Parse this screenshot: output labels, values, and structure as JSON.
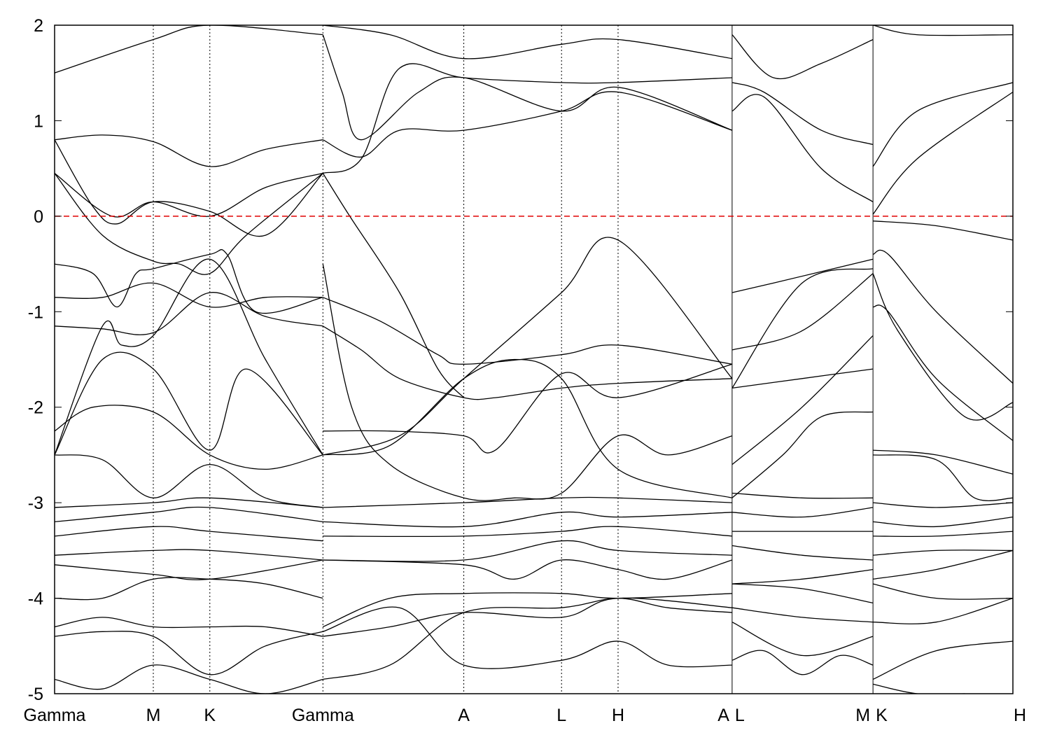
{
  "chart_data": {
    "type": "line",
    "title": "",
    "xlabel": "",
    "ylabel": "",
    "ylim": [
      -5,
      2
    ],
    "yticks": [
      2,
      1,
      0,
      -1,
      -2,
      -3,
      -4,
      -5
    ],
    "ytick_labels": [
      "2",
      "1",
      "0",
      "-1",
      "-2",
      "-3",
      "-4",
      "-5"
    ],
    "fermi_level": 0,
    "fermi_color": "#e00000",
    "line_color": "#000000",
    "xlim": [
      0,
      100
    ],
    "kpoints": [
      {
        "label": "Gamma",
        "x": 0
      },
      {
        "label": "M",
        "x": 10.3
      },
      {
        "label": "K",
        "x": 16.2
      },
      {
        "label": "Gamma",
        "x": 28.0
      },
      {
        "label": "A",
        "x": 42.7
      },
      {
        "label": "L",
        "x": 52.9
      },
      {
        "label": "H",
        "x": 58.8
      },
      {
        "label": "A",
        "x": 70.7
      },
      {
        "label": "L",
        "x": 70.7
      },
      {
        "label": "M",
        "x": 85.4
      },
      {
        "label": "K",
        "x": 85.4
      },
      {
        "label": "H",
        "x": 100
      }
    ],
    "discontinuities": [
      70.7,
      85.4
    ],
    "series": [
      {
        "x": [
          0,
          5,
          10.3,
          16.2,
          22,
          28.0
        ],
        "y": [
          0.8,
          0.85,
          0.78,
          0.52,
          0.7,
          0.8
        ]
      },
      {
        "x": [
          0,
          5,
          10.3,
          13,
          16.2,
          20,
          28.0
        ],
        "y": [
          0.45,
          -0.2,
          -0.47,
          -0.5,
          -0.6,
          -0.2,
          0.45
        ]
      },
      {
        "x": [
          0,
          6,
          10.3,
          16.2,
          22,
          28.0
        ],
        "y": [
          0.45,
          0.0,
          0.15,
          0.0,
          0.3,
          0.45
        ]
      },
      {
        "x": [
          0,
          4,
          6.5,
          10.3,
          16.2,
          22,
          28.0
        ],
        "y": [
          0.8,
          0.1,
          -0.08,
          0.15,
          0.05,
          -0.2,
          0.45
        ]
      },
      {
        "x": [
          0,
          4,
          6.5,
          8.5,
          10.3,
          16.2,
          18,
          21,
          28.0
        ],
        "y": [
          -0.5,
          -0.6,
          -0.95,
          -0.6,
          -0.55,
          -0.4,
          -0.4,
          -1.0,
          -0.85
        ]
      },
      {
        "x": [
          0,
          5,
          10.3,
          16.2,
          22,
          28.0
        ],
        "y": [
          -0.85,
          -0.85,
          -0.7,
          -0.95,
          -0.85,
          -0.85
        ]
      },
      {
        "x": [
          0,
          5,
          10.3,
          16.2,
          22,
          28.0
        ],
        "y": [
          -1.15,
          -1.18,
          -1.22,
          -0.8,
          -1.05,
          -1.15
        ]
      },
      {
        "x": [
          0,
          5,
          7,
          10.3,
          16.2,
          22,
          28.0
        ],
        "y": [
          -2.5,
          -1.15,
          -1.35,
          -1.25,
          -0.45,
          -1.5,
          -2.5
        ]
      },
      {
        "x": [
          0,
          5,
          10.3,
          16.2,
          20,
          28.0
        ],
        "y": [
          -2.5,
          -1.5,
          -1.6,
          -2.45,
          -1.6,
          -2.5
        ]
      },
      {
        "x": [
          0,
          4,
          10.3,
          16.2,
          22,
          28.0
        ],
        "y": [
          -2.25,
          -2.0,
          -2.05,
          -2.5,
          -2.65,
          -2.5
        ]
      },
      {
        "x": [
          0,
          5,
          10.3,
          16.2,
          22,
          28.0
        ],
        "y": [
          -2.5,
          -2.55,
          -2.95,
          -2.6,
          -2.95,
          -3.05
        ]
      },
      {
        "x": [
          0,
          10.3,
          16.2,
          28.0
        ],
        "y": [
          -3.05,
          -3.0,
          -2.95,
          -3.05
        ]
      },
      {
        "x": [
          0,
          10.3,
          16.2,
          28.0
        ],
        "y": [
          -3.2,
          -3.1,
          -3.05,
          -3.2
        ]
      },
      {
        "x": [
          0,
          10.3,
          16.2,
          28.0
        ],
        "y": [
          -3.35,
          -3.25,
          -3.3,
          -3.4
        ]
      },
      {
        "x": [
          0,
          10.3,
          16.2,
          28.0
        ],
        "y": [
          -3.55,
          -3.5,
          -3.5,
          -3.6
        ]
      },
      {
        "x": [
          0,
          10.3,
          16.2,
          28.0
        ],
        "y": [
          -3.65,
          -3.75,
          -3.8,
          -3.6
        ]
      },
      {
        "x": [
          0,
          5,
          10.3,
          16.2,
          22,
          28.0
        ],
        "y": [
          -4.0,
          -4.0,
          -3.8,
          -3.8,
          -3.85,
          -4.0
        ]
      },
      {
        "x": [
          0,
          5,
          10.3,
          16.2,
          22,
          28.0
        ],
        "y": [
          -4.3,
          -4.2,
          -4.3,
          -4.3,
          -4.3,
          -4.4
        ]
      },
      {
        "x": [
          0,
          5,
          10.3,
          16.2,
          22,
          28.0
        ],
        "y": [
          -4.4,
          -4.35,
          -4.4,
          -4.8,
          -4.5,
          -4.35
        ]
      },
      {
        "x": [
          0,
          5,
          10.3,
          16.2,
          22,
          28.0
        ],
        "y": [
          -4.85,
          -4.95,
          -4.7,
          -4.85,
          -5.0,
          -4.85
        ]
      },
      {
        "x": [
          0,
          10.3,
          16.2,
          28.0
        ],
        "y": [
          1.5,
          1.85,
          2.0,
          1.9
        ]
      },
      {
        "x": [
          28.0,
          32,
          36,
          42.7,
          52.9,
          58.8,
          70.7
        ],
        "y": [
          0.8,
          0.62,
          0.9,
          0.9,
          1.1,
          1.3,
          0.9
        ]
      },
      {
        "x": [
          28.0,
          32,
          36,
          42.7,
          52.9,
          58.8,
          70.7
        ],
        "y": [
          0.45,
          0.6,
          1.55,
          1.45,
          1.4,
          1.4,
          1.45
        ]
      },
      {
        "x": [
          28.0,
          30,
          32,
          38,
          42.7,
          52.9,
          58.8,
          70.7
        ],
        "y": [
          1.9,
          1.3,
          0.8,
          1.3,
          1.45,
          1.1,
          1.35,
          0.9
        ]
      },
      {
        "x": [
          28.0,
          35,
          42.7,
          52.9,
          58.8,
          70.7
        ],
        "y": [
          2.0,
          1.9,
          1.65,
          1.8,
          1.85,
          1.65
        ]
      },
      {
        "x": [
          28.0,
          30.8,
          36,
          40,
          42.7
        ],
        "y": [
          0.45,
          0.0,
          -0.8,
          -1.6,
          -1.9
        ]
      },
      {
        "x": [
          28.0,
          34,
          40,
          42.7,
          52.9,
          58.8,
          70.7
        ],
        "y": [
          -0.85,
          -1.1,
          -1.45,
          -1.55,
          -1.45,
          -1.35,
          -1.55
        ]
      },
      {
        "x": [
          28.0,
          32,
          36,
          42.7,
          46,
          52.9,
          58.8,
          70.7
        ],
        "y": [
          -1.15,
          -1.4,
          -1.7,
          -1.9,
          -1.9,
          -1.8,
          -1.75,
          -1.7
        ]
      },
      {
        "x": [
          28.0,
          31,
          35,
          42.7,
          48,
          52.9,
          58.8,
          64,
          70.7
        ],
        "y": [
          -0.5,
          -2.0,
          -2.6,
          -2.95,
          -2.95,
          -2.9,
          -2.3,
          -2.5,
          -2.3
        ]
      },
      {
        "x": [
          28.0,
          36,
          42.7,
          52.9,
          58.8,
          70.7
        ],
        "y": [
          -2.5,
          -2.3,
          -1.7,
          -0.8,
          -0.25,
          -1.7
        ]
      },
      {
        "x": [
          28.0,
          35,
          42.7,
          46,
          52.9,
          58.8,
          70.7
        ],
        "y": [
          -2.25,
          -2.25,
          -2.3,
          -2.45,
          -1.65,
          -1.9,
          -1.55
        ]
      },
      {
        "x": [
          28.0,
          35,
          42.7,
          48,
          52.9,
          58.8,
          70.7
        ],
        "y": [
          -2.5,
          -2.4,
          -1.7,
          -1.5,
          -1.7,
          -2.65,
          -2.95
        ]
      },
      {
        "x": [
          28.0,
          42.7,
          52.9,
          58.8,
          70.7
        ],
        "y": [
          -3.05,
          -3.0,
          -2.95,
          -2.95,
          -3.0
        ]
      },
      {
        "x": [
          28.0,
          42.7,
          52.9,
          58.8,
          70.7
        ],
        "y": [
          -3.2,
          -3.25,
          -3.1,
          -3.15,
          -3.1
        ]
      },
      {
        "x": [
          28.0,
          42.7,
          52.9,
          58.8,
          70.7
        ],
        "y": [
          -3.35,
          -3.35,
          -3.3,
          -3.25,
          -3.35
        ]
      },
      {
        "x": [
          28.0,
          42.7,
          52.9,
          58.8,
          70.7
        ],
        "y": [
          -3.6,
          -3.6,
          -3.4,
          -3.5,
          -3.55
        ]
      },
      {
        "x": [
          28.0,
          42.7,
          48,
          52.9,
          58.8,
          64,
          70.7
        ],
        "y": [
          -3.6,
          -3.65,
          -3.8,
          -3.6,
          -3.7,
          -3.8,
          -3.6
        ]
      },
      {
        "x": [
          28.0,
          35,
          42.7,
          52.9,
          58.8,
          70.7
        ],
        "y": [
          -4.3,
          -4.0,
          -3.95,
          -3.95,
          -4.0,
          -3.95
        ]
      },
      {
        "x": [
          28.0,
          35,
          42.7,
          52.9,
          58.8,
          70.7
        ],
        "y": [
          -4.4,
          -4.3,
          -4.15,
          -4.2,
          -4.0,
          -4.1
        ]
      },
      {
        "x": [
          28.0,
          35,
          42.7,
          52.9,
          58.8,
          64,
          70.7
        ],
        "y": [
          -4.85,
          -4.7,
          -4.15,
          -4.1,
          -4.0,
          -4.1,
          -4.15
        ]
      },
      {
        "x": [
          28.0,
          36,
          42.7,
          52.9,
          58.8,
          64,
          70.7
        ],
        "y": [
          -4.35,
          -4.1,
          -4.7,
          -4.65,
          -4.45,
          -4.7,
          -4.7
        ]
      },
      {
        "x": [
          70.7,
          74,
          80,
          85.4
        ],
        "y": [
          1.1,
          1.25,
          0.5,
          0.15
        ]
      },
      {
        "x": [
          70.7,
          74,
          80,
          85.4
        ],
        "y": [
          1.4,
          1.3,
          0.9,
          0.75
        ]
      },
      {
        "x": [
          70.7,
          75,
          80,
          85.4
        ],
        "y": [
          1.9,
          1.45,
          1.6,
          1.85
        ]
      },
      {
        "x": [
          70.7,
          75,
          85.4
        ],
        "y": [
          -0.8,
          -0.7,
          -0.45
        ]
      },
      {
        "x": [
          70.7,
          78,
          85.4
        ],
        "y": [
          -1.8,
          -0.7,
          -0.55
        ]
      },
      {
        "x": [
          70.7,
          78,
          85.4
        ],
        "y": [
          -1.4,
          -1.2,
          -0.6
        ]
      },
      {
        "x": [
          70.7,
          78,
          85.4
        ],
        "y": [
          -2.6,
          -2.0,
          -1.25
        ]
      },
      {
        "x": [
          70.7,
          78,
          85.4
        ],
        "y": [
          -1.8,
          -1.7,
          -1.6
        ]
      },
      {
        "x": [
          70.7,
          76,
          80,
          85.4
        ],
        "y": [
          -2.95,
          -2.5,
          -2.1,
          -2.05
        ]
      },
      {
        "x": [
          70.7,
          78,
          85.4
        ],
        "y": [
          -2.9,
          -2.95,
          -2.95
        ]
      },
      {
        "x": [
          70.7,
          78,
          85.4
        ],
        "y": [
          -3.1,
          -3.15,
          -3.05
        ]
      },
      {
        "x": [
          70.7,
          78,
          85.4
        ],
        "y": [
          -3.3,
          -3.3,
          -3.3
        ]
      },
      {
        "x": [
          70.7,
          78,
          85.4
        ],
        "y": [
          -3.45,
          -3.55,
          -3.6
        ]
      },
      {
        "x": [
          70.7,
          78,
          85.4
        ],
        "y": [
          -3.85,
          -3.8,
          -3.7
        ]
      },
      {
        "x": [
          70.7,
          78,
          85.4
        ],
        "y": [
          -4.1,
          -4.2,
          -4.25
        ]
      },
      {
        "x": [
          70.7,
          78,
          85.4
        ],
        "y": [
          -3.85,
          -3.9,
          -4.05
        ]
      },
      {
        "x": [
          70.7,
          74,
          78,
          82,
          85.4
        ],
        "y": [
          -4.65,
          -4.55,
          -4.8,
          -4.6,
          -4.7
        ]
      },
      {
        "x": [
          70.7,
          78,
          85.4
        ],
        "y": [
          -4.25,
          -4.6,
          -4.4
        ]
      },
      {
        "x": [
          85.4,
          90,
          100
        ],
        "y": [
          0.52,
          1.1,
          1.4
        ]
      },
      {
        "x": [
          85.4,
          90,
          100
        ],
        "y": [
          0.02,
          0.6,
          1.3
        ]
      },
      {
        "x": [
          85.4,
          90,
          100
        ],
        "y": [
          2.0,
          1.9,
          1.9
        ]
      },
      {
        "x": [
          85.4,
          92,
          100
        ],
        "y": [
          -0.05,
          -0.1,
          -0.25
        ]
      },
      {
        "x": [
          85.4,
          87,
          92,
          100
        ],
        "y": [
          -0.4,
          -0.4,
          -1.0,
          -1.75
        ]
      },
      {
        "x": [
          85.4,
          87,
          92,
          100
        ],
        "y": [
          -0.95,
          -1.0,
          -1.7,
          -2.35
        ]
      },
      {
        "x": [
          85.4,
          88,
          95,
          100
        ],
        "y": [
          -0.6,
          -1.2,
          -2.1,
          -1.95
        ]
      },
      {
        "x": [
          85.4,
          92,
          100
        ],
        "y": [
          -2.45,
          -2.5,
          -2.7
        ]
      },
      {
        "x": [
          85.4,
          92,
          96,
          100
        ],
        "y": [
          -2.5,
          -2.55,
          -2.95,
          -2.95
        ]
      },
      {
        "x": [
          85.4,
          92,
          100
        ],
        "y": [
          -3.0,
          -3.05,
          -3.0
        ]
      },
      {
        "x": [
          85.4,
          92,
          100
        ],
        "y": [
          -3.2,
          -3.25,
          -3.15
        ]
      },
      {
        "x": [
          85.4,
          92,
          100
        ],
        "y": [
          -3.35,
          -3.35,
          -3.3
        ]
      },
      {
        "x": [
          85.4,
          92,
          100
        ],
        "y": [
          -3.55,
          -3.5,
          -3.5
        ]
      },
      {
        "x": [
          85.4,
          92,
          100
        ],
        "y": [
          -3.8,
          -3.7,
          -3.5
        ]
      },
      {
        "x": [
          85.4,
          92,
          100
        ],
        "y": [
          -3.85,
          -4.0,
          -4.0
        ]
      },
      {
        "x": [
          85.4,
          92,
          100
        ],
        "y": [
          -4.25,
          -4.25,
          -4.0
        ]
      },
      {
        "x": [
          85.4,
          92,
          100
        ],
        "y": [
          -4.85,
          -4.55,
          -4.45
        ]
      },
      {
        "x": [
          85.4,
          90,
          95
        ],
        "y": [
          -4.9,
          -5.0,
          -5.0
        ]
      }
    ]
  }
}
